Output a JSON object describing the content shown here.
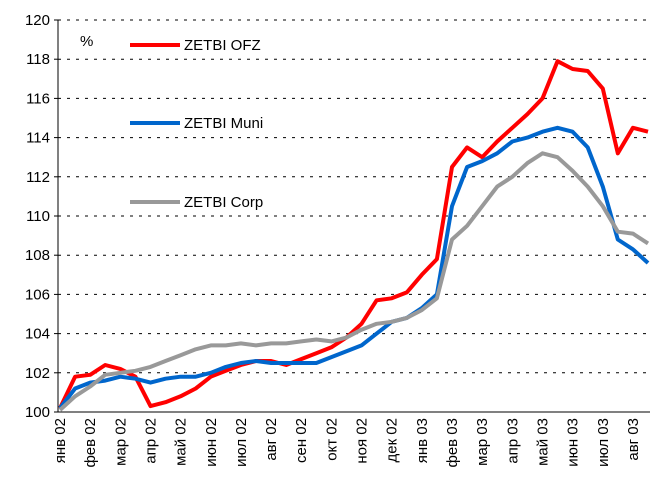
{
  "chart_data": {
    "type": "line",
    "y_unit_label": "%",
    "categories": [
      "янв 02",
      null,
      "фев 02",
      null,
      "мар 02",
      null,
      "апр 02",
      null,
      "май 02",
      null,
      "июн 02",
      null,
      "июл 02",
      null,
      "авг 02",
      null,
      "сен 02",
      null,
      "окт 02",
      null,
      "ноя 02",
      null,
      "дек 02",
      null,
      "янв 03",
      null,
      "фев 03",
      null,
      "мар 03",
      null,
      "апр 03",
      null,
      "май 03",
      null,
      "июн 03",
      null,
      "июл 03",
      null,
      "авг 03",
      null
    ],
    "series": [
      {
        "name": "ZETBI OFZ",
        "color": "#ff0000",
        "values": [
          100.2,
          101.8,
          101.9,
          102.4,
          102.2,
          101.8,
          100.3,
          100.5,
          100.8,
          101.2,
          101.8,
          102.1,
          102.4,
          102.6,
          102.6,
          102.4,
          102.7,
          103.0,
          103.3,
          103.8,
          104.5,
          105.7,
          105.8,
          106.1,
          107.0,
          107.8,
          112.5,
          113.5,
          113.0,
          113.8,
          114.5,
          115.2,
          116.0,
          117.9,
          117.5,
          117.4,
          116.5,
          113.2,
          114.5,
          114.3
        ]
      },
      {
        "name": "ZETBI Muni",
        "color": "#0066cc",
        "values": [
          100.2,
          101.2,
          101.5,
          101.6,
          101.8,
          101.7,
          101.5,
          101.7,
          101.8,
          101.8,
          102.0,
          102.3,
          102.5,
          102.6,
          102.5,
          102.5,
          102.5,
          102.5,
          102.8,
          103.1,
          103.4,
          104.0,
          104.6,
          104.8,
          105.3,
          106.0,
          110.5,
          112.5,
          112.8,
          113.2,
          113.8,
          114.0,
          114.3,
          114.5,
          114.3,
          113.5,
          111.5,
          108.8,
          108.3,
          107.6
        ]
      },
      {
        "name": "ZETBI Corp",
        "color": "#999999",
        "values": [
          100.1,
          100.8,
          101.3,
          101.9,
          102.0,
          102.1,
          102.3,
          102.6,
          102.9,
          103.2,
          103.4,
          103.4,
          103.5,
          103.4,
          103.5,
          103.5,
          103.6,
          103.7,
          103.6,
          103.8,
          104.2,
          104.5,
          104.6,
          104.8,
          105.2,
          105.8,
          108.8,
          109.5,
          110.5,
          111.5,
          112.0,
          112.7,
          113.2,
          113.0,
          112.3,
          111.5,
          110.5,
          109.2,
          109.1,
          108.6
        ]
      }
    ],
    "ylim": [
      100,
      120
    ],
    "yticks": [
      100,
      102,
      104,
      106,
      108,
      110,
      112,
      114,
      116,
      118,
      120
    ],
    "grid": true,
    "legend": "upper left"
  }
}
